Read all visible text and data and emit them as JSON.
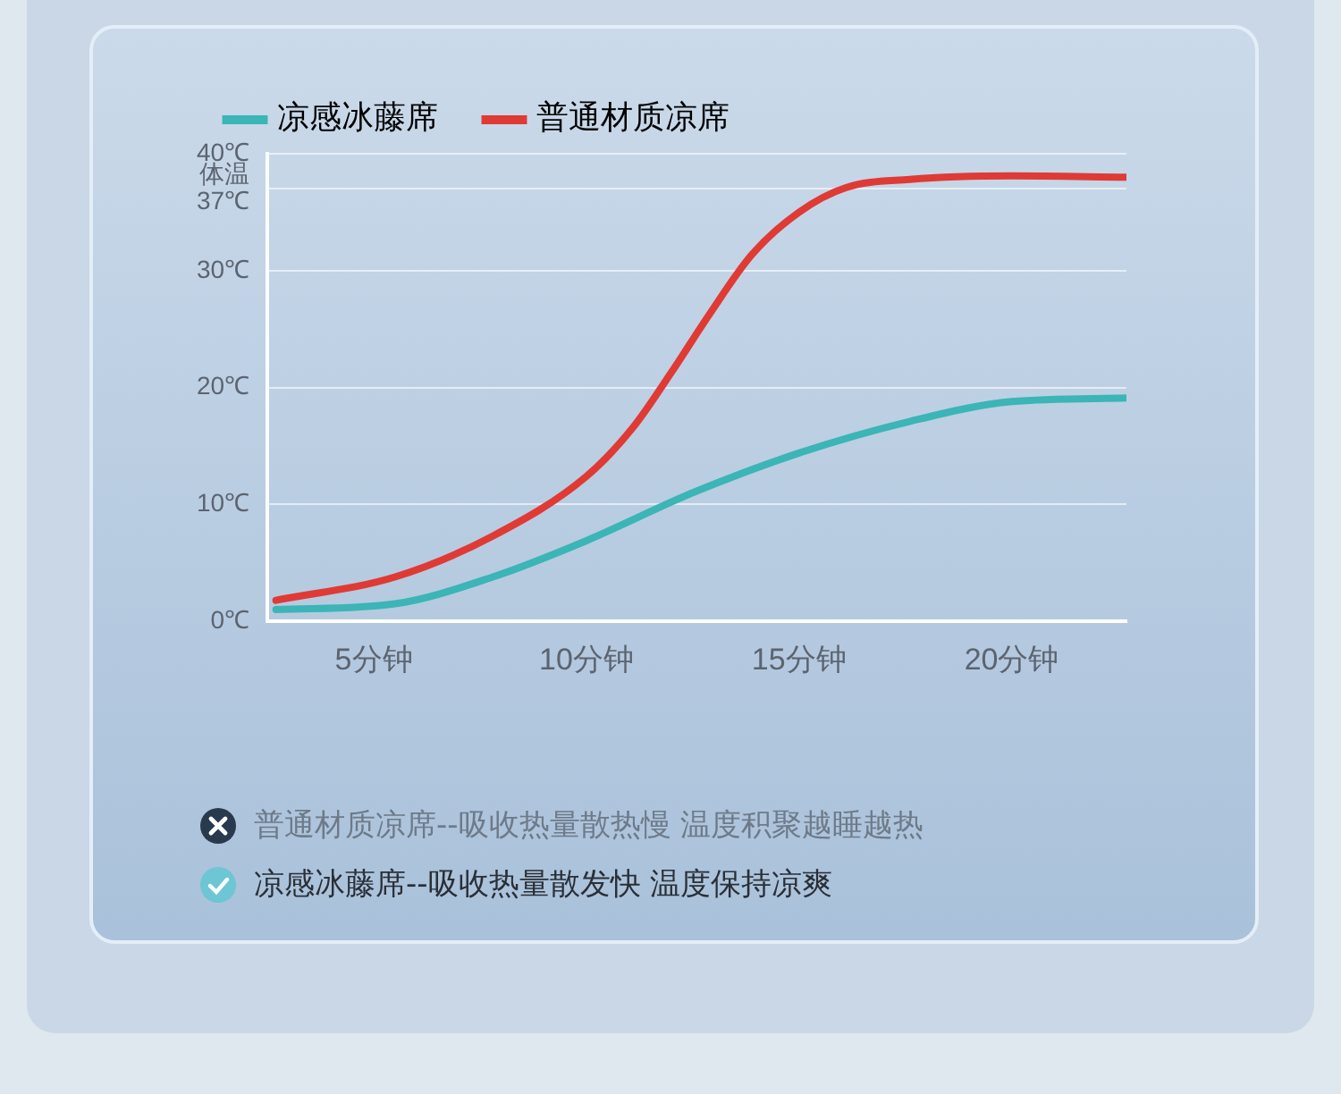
{
  "chart_data": {
    "type": "line",
    "legend": "top left",
    "grid": "y",
    "marker": "none",
    "line_style": "solid",
    "xlim": [
      2.5,
      22.7
    ],
    "xticks": [
      {
        "value": 5,
        "label": "5分钟"
      },
      {
        "value": 10,
        "label": "10分钟"
      },
      {
        "value": 15,
        "label": "15分钟"
      },
      {
        "value": 20,
        "label": "20分钟"
      }
    ],
    "ylim": [
      0,
      40
    ],
    "yticks": [
      {
        "value": 0,
        "label": "0℃"
      },
      {
        "value": 10,
        "label": "10℃"
      },
      {
        "value": 20,
        "label": "20℃"
      },
      {
        "value": 30,
        "label": "30℃"
      },
      {
        "value": 37,
        "label": "体温\n37℃"
      },
      {
        "value": 40,
        "label": "40℃"
      }
    ],
    "series": [
      {
        "name": "凉感冰藤席",
        "color": "#3bb5b5",
        "x": [
          2.7,
          5.5,
          7.8,
          10,
          12.5,
          15,
          17.6,
          20,
          22.7
        ],
        "values": [
          1.0,
          1.5,
          3.8,
          6.9,
          11.0,
          14.4,
          17.1,
          18.8,
          19.1
        ]
      },
      {
        "name": "普通材质凉席",
        "color": "#e03a35",
        "x": [
          2.7,
          5.5,
          7.8,
          10,
          11.1,
          12,
          12.9,
          13.9,
          15,
          16.1,
          17.6,
          20,
          22.7
        ],
        "values": [
          1.8,
          3.8,
          7.3,
          12.4,
          16.6,
          21.3,
          26.3,
          31.4,
          35,
          37.1,
          37.8,
          38.1,
          38.0
        ]
      }
    ],
    "annotations": [
      "普通材质凉席--吸收热量散热慢 温度积聚越睡越热",
      "凉感冰藤席--吸收热量散发快 温度保持凉爽"
    ]
  }
}
